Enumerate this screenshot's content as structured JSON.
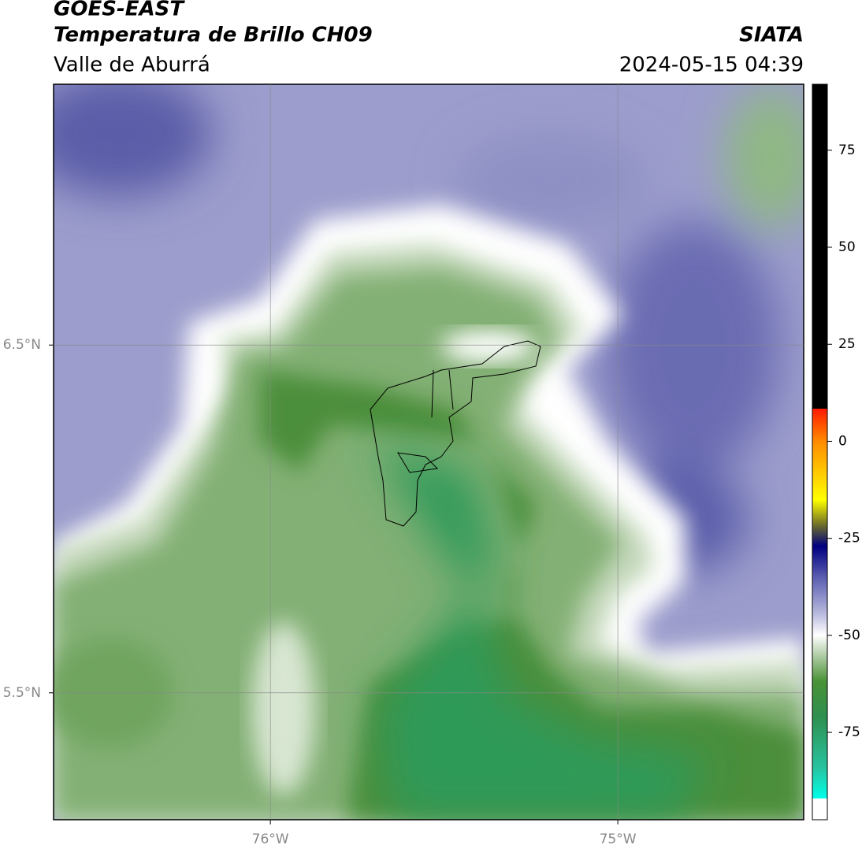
{
  "header": {
    "title": "GOES-EAST",
    "subtitle": "Temperatura de Brillo CH09",
    "region": "Valle de Aburrá",
    "source": "SIATA",
    "timestamp": "2024-05-15 04:39"
  },
  "map": {
    "lonlim": [
      -76.624,
      -74.465
    ],
    "latlim": [
      5.135,
      7.25
    ],
    "lonticks": [
      {
        "value": -76,
        "label": "76°W"
      },
      {
        "value": -75,
        "label": "75°W"
      }
    ],
    "latticks": [
      {
        "value": 6.5,
        "label": "6.5°N"
      },
      {
        "value": 5.5,
        "label": "5.5°N"
      }
    ],
    "grid": true
  },
  "colorbar": {
    "lim": [
      -97.5,
      92
    ],
    "ticks": [
      75,
      50,
      25,
      0,
      -25,
      -50,
      -75
    ]
  }
}
